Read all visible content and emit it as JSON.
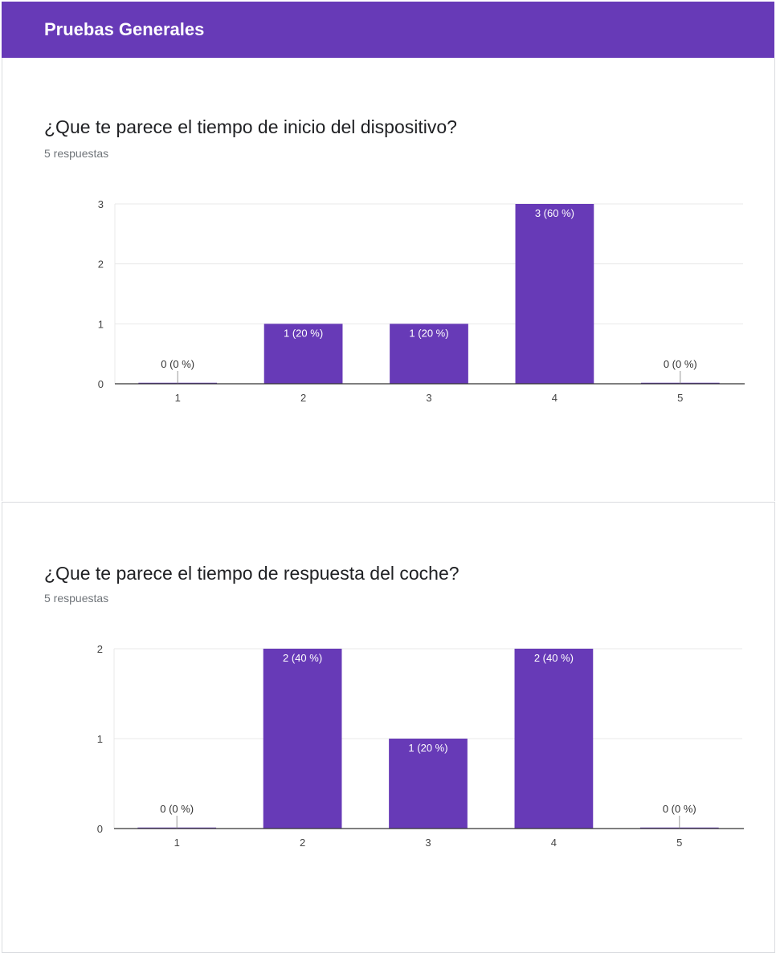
{
  "header": {
    "title": "Pruebas Generales",
    "color": "#673ab7"
  },
  "questions": [
    {
      "title": "¿Que te parece el tiempo de inicio del dispositivo?",
      "responses": "5 respuestas"
    },
    {
      "title": "¿Que te parece el tiempo de respuesta del coche?",
      "responses": "5 respuestas"
    }
  ],
  "chart_data": [
    {
      "type": "bar",
      "categories": [
        "1",
        "2",
        "3",
        "4",
        "5"
      ],
      "values": [
        0,
        1,
        1,
        3,
        0
      ],
      "data_labels": [
        "0 (0 %)",
        "1 (20 %)",
        "1 (20 %)",
        "3 (60 %)",
        "0 (0 %)"
      ],
      "ylim": [
        0,
        3
      ],
      "yticks": [
        0,
        1,
        2,
        3
      ],
      "color": "#673ab7",
      "grid": true
    },
    {
      "type": "bar",
      "categories": [
        "1",
        "2",
        "3",
        "4",
        "5"
      ],
      "values": [
        0,
        2,
        1,
        2,
        0
      ],
      "data_labels": [
        "0 (0 %)",
        "2 (40 %)",
        "1 (20 %)",
        "2 (40 %)",
        "0 (0 %)"
      ],
      "ylim": [
        0,
        2
      ],
      "yticks": [
        0,
        1,
        2
      ],
      "color": "#673ab7",
      "grid": true
    }
  ]
}
